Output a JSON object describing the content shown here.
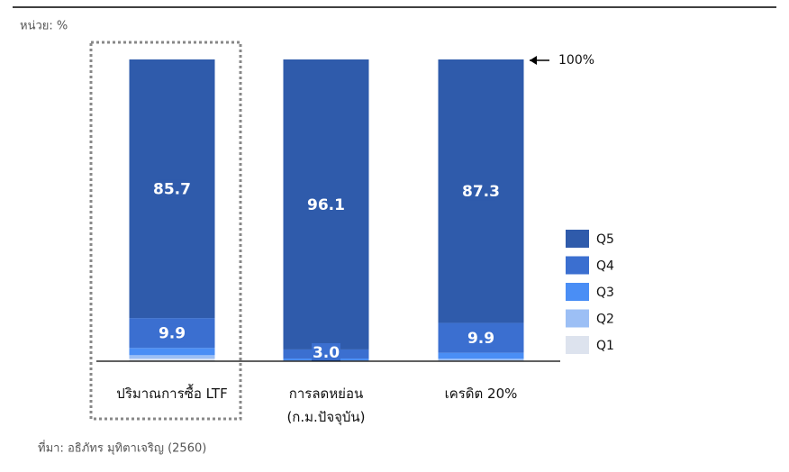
{
  "chart_data": {
    "type": "stacked_bar",
    "unit_label": "หน่วย: %",
    "source": "ที่มา: อธิภัทร มุทิตาเจริญ (2560)",
    "annotation": "100%",
    "categories": [
      "ปริมาณการซื้อ LTF",
      "การลดหย่อน (ก.ม.ปัจจุบัน)",
      "เครดิต 20%"
    ],
    "ylim": [
      0,
      100
    ],
    "series": [
      {
        "name": "Q1",
        "color": "#dde3ee",
        "values": [
          0.8,
          0.1,
          0.3
        ]
      },
      {
        "name": "Q2",
        "color": "#9cbff5",
        "values": [
          1.2,
          0.2,
          0.5
        ]
      },
      {
        "name": "Q3",
        "color": "#4a8ef5",
        "values": [
          2.4,
          0.6,
          2.0
        ]
      },
      {
        "name": "Q4",
        "color": "#3b6fd0",
        "values": [
          9.9,
          3.0,
          9.9
        ],
        "value_labels": [
          "9.9",
          "3.0",
          "9.9"
        ],
        "show_labels": true
      },
      {
        "name": "Q5",
        "color": "#2f5bab",
        "values": [
          85.7,
          96.1,
          87.3
        ],
        "show_labels": true
      }
    ]
  }
}
